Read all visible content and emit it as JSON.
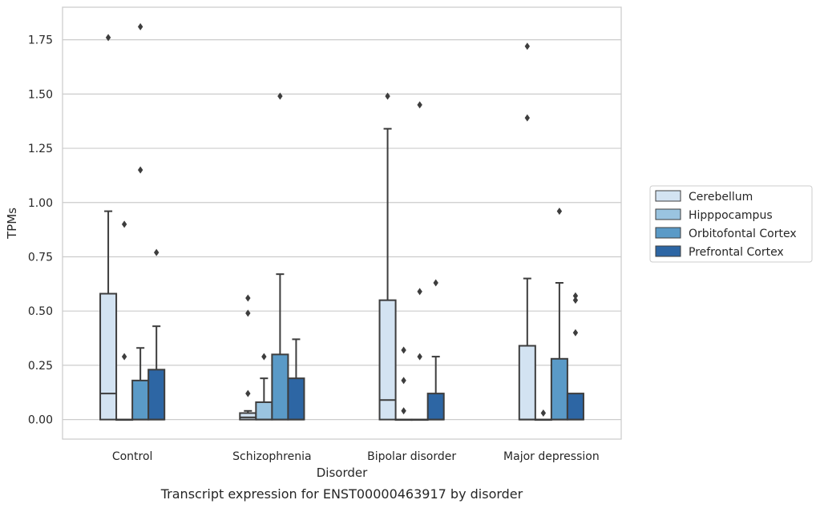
{
  "chart_data": {
    "type": "box",
    "caption": "Transcript expression for ENST00000463917 by disorder",
    "xlabel": "Disorder",
    "ylabel": "TPMs",
    "ylim": [
      -0.09,
      1.9
    ],
    "yticks": [
      "0.00",
      "0.25",
      "0.50",
      "0.75",
      "1.00",
      "1.25",
      "1.50",
      "1.75"
    ],
    "grid": true,
    "legend_position": "right",
    "categories": [
      "Control",
      "Schizophrenia",
      "Bipolar disorder",
      "Major depression"
    ],
    "series": [
      {
        "name": "Cerebellum",
        "color": "#d3e3f2",
        "boxes": [
          {
            "q1": 0.0,
            "median": 0.12,
            "q3": 0.58,
            "whislo": 0.0,
            "whishi": 0.96,
            "fliers": [
              1.76
            ]
          },
          {
            "q1": 0.0,
            "median": 0.01,
            "q3": 0.03,
            "whislo": 0.0,
            "whishi": 0.04,
            "fliers": [
              0.12,
              0.49,
              0.56
            ]
          },
          {
            "q1": 0.0,
            "median": 0.09,
            "q3": 0.55,
            "whislo": 0.0,
            "whishi": 1.34,
            "fliers": [
              1.49
            ]
          },
          {
            "q1": 0.0,
            "median": 0.0,
            "q3": 0.34,
            "whislo": 0.0,
            "whishi": 0.65,
            "fliers": [
              1.39,
              1.72
            ]
          }
        ]
      },
      {
        "name": "Hipppocampus",
        "color": "#9ac4e0",
        "boxes": [
          {
            "q1": 0.0,
            "median": 0.0,
            "q3": 0.0,
            "whislo": 0.0,
            "whishi": 0.0,
            "fliers": [
              0.29,
              0.9
            ]
          },
          {
            "q1": 0.0,
            "median": 0.0,
            "q3": 0.08,
            "whislo": 0.0,
            "whishi": 0.19,
            "fliers": [
              0.29
            ]
          },
          {
            "q1": 0.0,
            "median": 0.0,
            "q3": 0.0,
            "whislo": 0.0,
            "whishi": 0.0,
            "fliers": [
              0.04,
              0.18,
              0.32
            ]
          },
          {
            "q1": 0.0,
            "median": 0.0,
            "q3": 0.0,
            "whislo": 0.0,
            "whishi": 0.0,
            "fliers": [
              0.03
            ]
          }
        ]
      },
      {
        "name": "Orbitofontal Cortex",
        "color": "#5a9ac7",
        "boxes": [
          {
            "q1": 0.0,
            "median": 0.0,
            "q3": 0.18,
            "whislo": 0.0,
            "whishi": 0.33,
            "fliers": [
              1.15,
              1.81
            ]
          },
          {
            "q1": 0.0,
            "median": 0.0,
            "q3": 0.3,
            "whislo": 0.0,
            "whishi": 0.67,
            "fliers": [
              1.49
            ]
          },
          {
            "q1": 0.0,
            "median": 0.0,
            "q3": 0.0,
            "whislo": 0.0,
            "whishi": 0.0,
            "fliers": [
              0.29,
              0.59,
              1.45
            ]
          },
          {
            "q1": 0.0,
            "median": 0.0,
            "q3": 0.28,
            "whislo": 0.0,
            "whishi": 0.63,
            "fliers": [
              0.96
            ]
          }
        ]
      },
      {
        "name": "Prefrontal Cortex",
        "color": "#2d66a4",
        "boxes": [
          {
            "q1": 0.0,
            "median": 0.0,
            "q3": 0.23,
            "whislo": 0.0,
            "whishi": 0.43,
            "fliers": [
              0.77
            ]
          },
          {
            "q1": 0.0,
            "median": 0.0,
            "q3": 0.19,
            "whislo": 0.0,
            "whishi": 0.37,
            "fliers": []
          },
          {
            "q1": 0.0,
            "median": 0.0,
            "q3": 0.12,
            "whislo": 0.0,
            "whishi": 0.29,
            "fliers": [
              0.63
            ]
          },
          {
            "q1": 0.0,
            "median": 0.0,
            "q3": 0.12,
            "whislo": 0.0,
            "whishi": 0.12,
            "fliers": [
              0.4,
              0.55,
              0.57
            ]
          }
        ]
      }
    ]
  }
}
